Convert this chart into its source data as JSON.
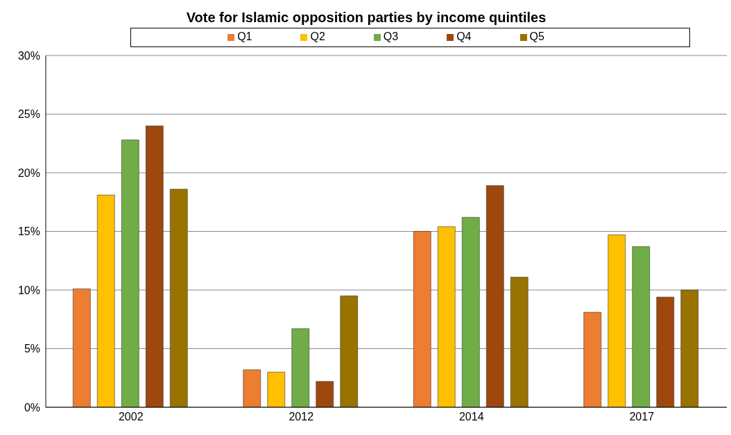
{
  "chart_data": {
    "type": "bar",
    "title": "Vote for Islamic opposition parties by income quintiles",
    "categories": [
      "2002",
      "2012",
      "2014",
      "2017"
    ],
    "series": [
      {
        "name": "Q1",
        "color": "#ed7d31",
        "values": [
          10.1,
          3.2,
          15.0,
          8.1
        ]
      },
      {
        "name": "Q2",
        "color": "#ffc000",
        "values": [
          18.1,
          3.0,
          15.4,
          14.7
        ]
      },
      {
        "name": "Q3",
        "color": "#70ad47",
        "values": [
          22.8,
          6.7,
          16.2,
          13.7
        ]
      },
      {
        "name": "Q4",
        "color": "#9e480e",
        "values": [
          24.0,
          2.2,
          18.9,
          9.4
        ]
      },
      {
        "name": "Q5",
        "color": "#997300",
        "values": [
          18.6,
          9.5,
          11.1,
          10.0
        ]
      }
    ],
    "ylim": [
      0,
      30
    ],
    "yticks": [
      {
        "value": 0,
        "label": "0%"
      },
      {
        "value": 5,
        "label": "5%"
      },
      {
        "value": 10,
        "label": "10%"
      },
      {
        "value": 15,
        "label": "15%"
      },
      {
        "value": 20,
        "label": "20%"
      },
      {
        "value": 25,
        "label": "25%"
      },
      {
        "value": 30,
        "label": "30%"
      }
    ],
    "grid": "y",
    "legend": "top"
  }
}
